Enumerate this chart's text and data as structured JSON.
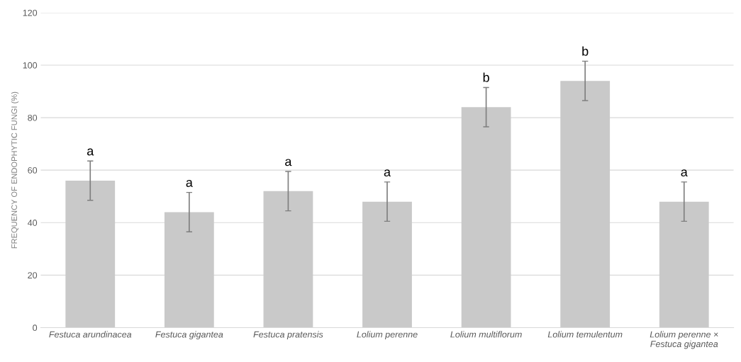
{
  "chart_data": {
    "type": "bar",
    "categories": [
      "Festuca arundinacea",
      "Festuca gigantea",
      "Festuca pratensis",
      "Lolium perenne",
      "Lolium multiflorum",
      "Lolium temulentum",
      "Lolium perenne ×\nFestuca gigantea"
    ],
    "values": [
      56,
      44,
      52,
      48,
      84,
      94,
      48
    ],
    "errors": [
      7.5,
      7.5,
      7.5,
      7.5,
      7.5,
      7.5,
      7.5
    ],
    "color": "#c9c9c9",
    "ylabel": "FREQUENCY OF ENDOPHYTIC FUNGI (%)",
    "ylim": [
      0,
      120
    ],
    "yticks": [
      0,
      20,
      40,
      60,
      80,
      100,
      120
    ],
    "grid": "y",
    "annotations": [
      "a",
      "a",
      "a",
      "a",
      "b",
      "b",
      "a"
    ]
  }
}
